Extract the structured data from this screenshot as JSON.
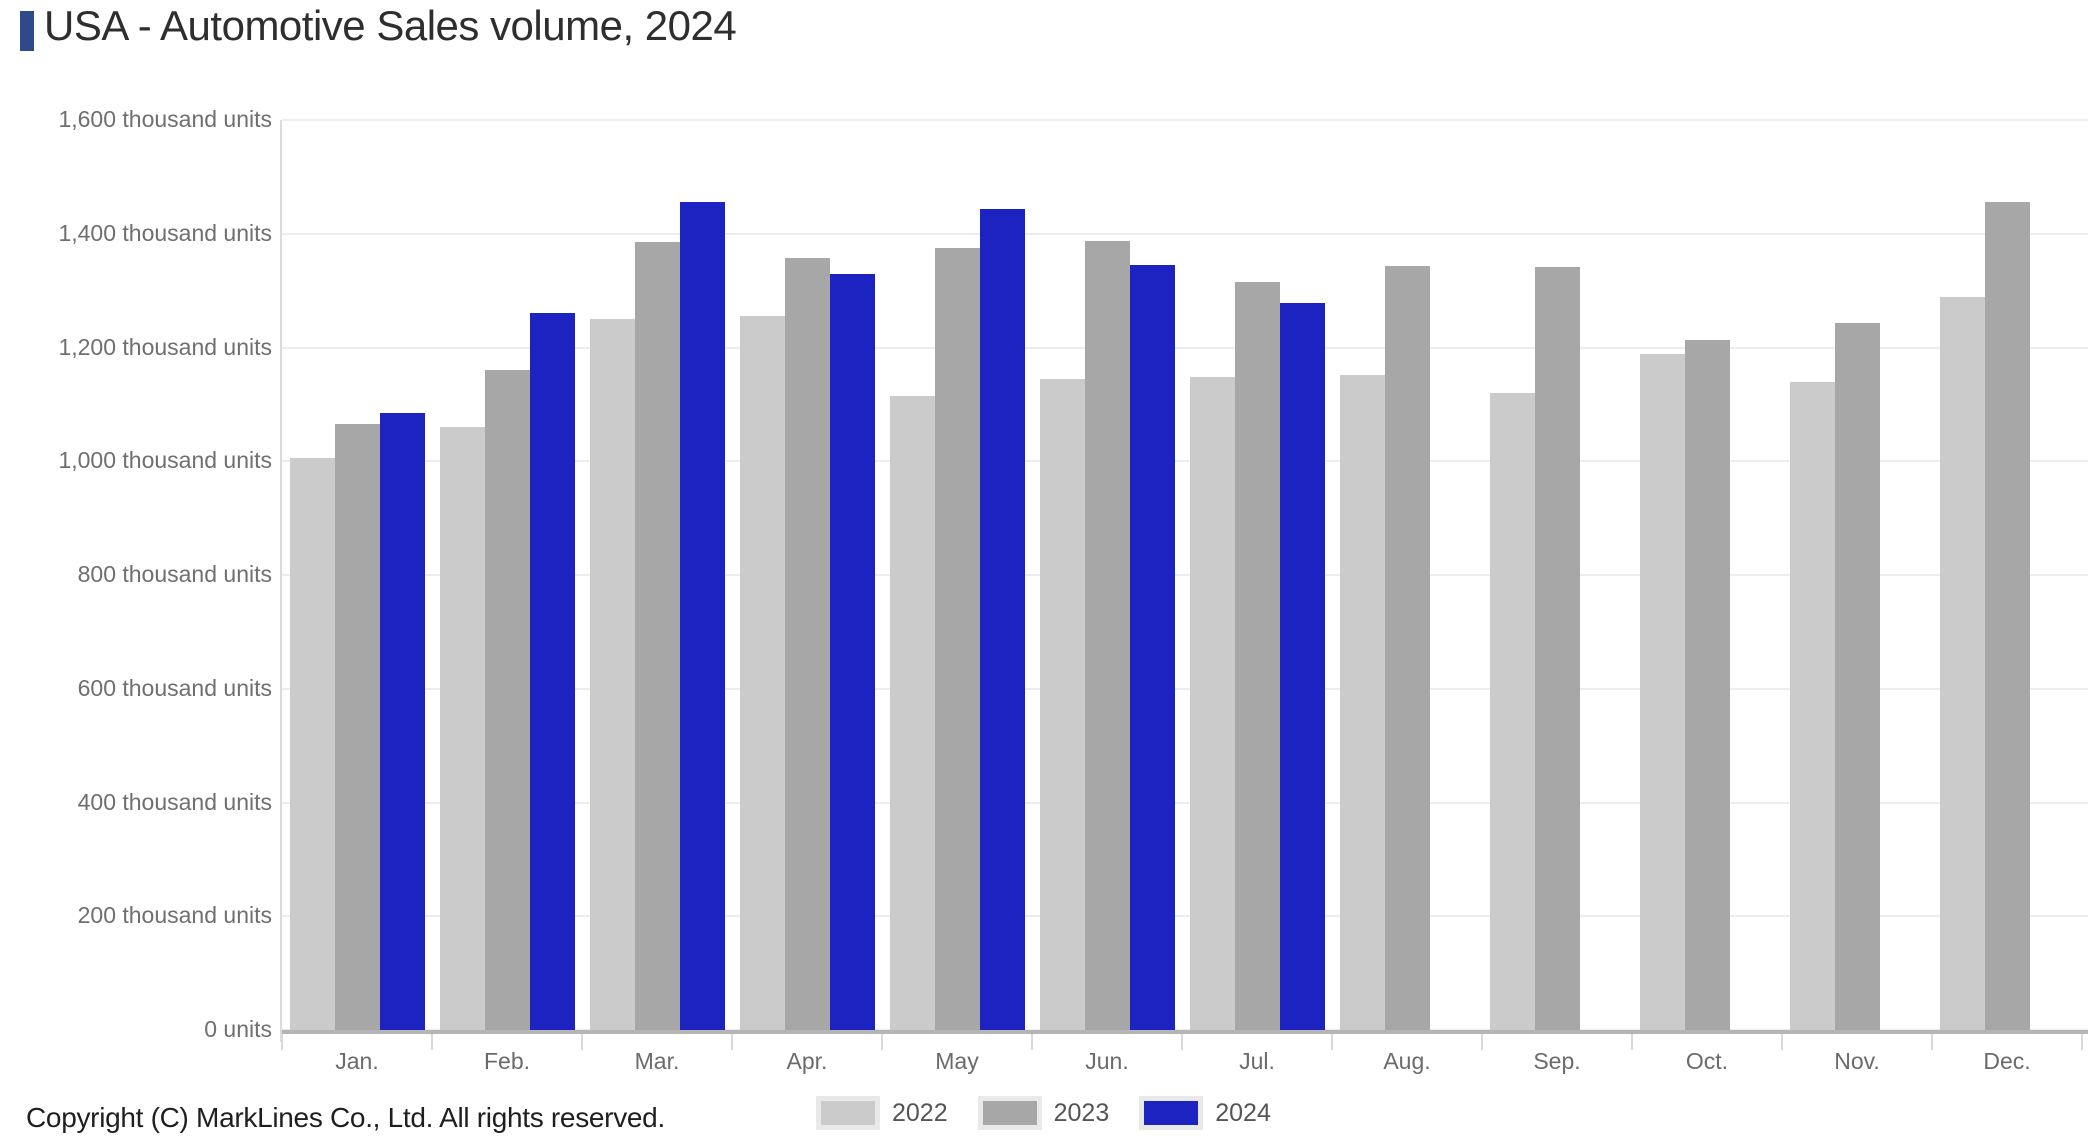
{
  "header": {
    "title": "USA - Automotive Sales volume, 2024",
    "marker_color": "#2d4a8a"
  },
  "footer": {
    "copyright": "Copyright (C) MarkLines Co., Ltd. All rights reserved."
  },
  "colors": {
    "bar_2022": "#cbcbcb",
    "bar_2023": "#a7a7a7",
    "bar_2024": "#1c23c0",
    "accent_marker": "#2d4a8a",
    "gridline": "#ededed",
    "axis_baseline": "#b5b5b5"
  },
  "chart_data": {
    "type": "bar",
    "title": "USA - Automotive Sales volume, 2024",
    "categories": [
      "Jan.",
      "Feb.",
      "Mar.",
      "Apr.",
      "May",
      "Jun.",
      "Jul.",
      "Aug.",
      "Sep.",
      "Oct.",
      "Nov.",
      "Dec."
    ],
    "series": [
      {
        "name": "2022",
        "color": "#cbcbcb",
        "values": [
          1005,
          1060,
          1250,
          1255,
          1115,
          1145,
          1148,
          1152,
          1120,
          1188,
          1140,
          1288
        ]
      },
      {
        "name": "2023",
        "color": "#a7a7a7",
        "values": [
          1065,
          1160,
          1385,
          1357,
          1375,
          1387,
          1315,
          1343,
          1342,
          1213,
          1243,
          1456
        ]
      },
      {
        "name": "2024",
        "color": "#1c23c0",
        "values": [
          1085,
          1260,
          1456,
          1330,
          1444,
          1345,
          1278,
          null,
          null,
          null,
          null,
          null
        ]
      }
    ],
    "ylabel": "thousand units",
    "ylim": [
      0,
      1600
    ],
    "ytick_step": 200,
    "ytick_labels": [
      "1,600 thousand units",
      "1,400 thousand units",
      "1,200 thousand units",
      "1,000 thousand units",
      "800 thousand units",
      "600 thousand units",
      "400 thousand units",
      "200 thousand units",
      "0 units"
    ],
    "grid": true,
    "legend_position": "bottom",
    "legend_entries": [
      "2022",
      "2023",
      "2024"
    ]
  }
}
